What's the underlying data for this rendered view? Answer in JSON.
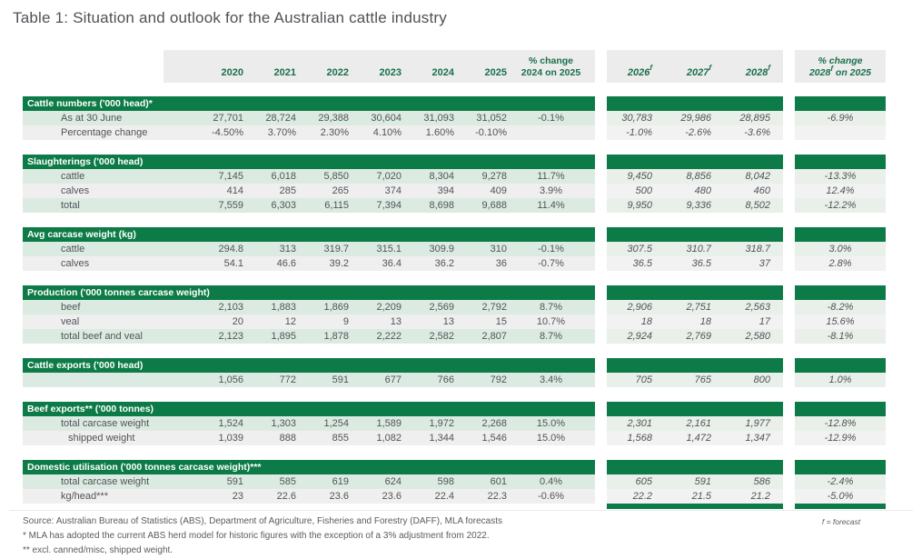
{
  "title": "Table 1: Situation and outlook for the Australian cattle industry",
  "colors": {
    "brand_green": "#0d7b47",
    "row_green": "#dcebe2",
    "row_gray": "#efefef",
    "header_gray": "#ececec",
    "heading_text_green": "#1a6f4c"
  },
  "header": {
    "years": [
      "2020",
      "2021",
      "2022",
      "2023",
      "2024",
      "2025"
    ],
    "pct_change_line1": "% change",
    "pct_change_line2": "2024 on 2025",
    "forecast_years": [
      "2026",
      "2027",
      "2028"
    ],
    "forecast_suffix": "f",
    "forecast_pct_line1": "% change",
    "forecast_pct_line2_pre": "2028",
    "forecast_pct_line2_post": " on 2025"
  },
  "sections": [
    {
      "id": "cattle-numbers",
      "title": "Cattle numbers ('000 head)*",
      "rows": [
        {
          "label": "As at 30 June",
          "indent": 1,
          "values_2020_2025": [
            "27,701",
            "28,724",
            "29,388",
            "30,604",
            "31,093",
            "31,052"
          ],
          "pct_2024_on_2025": "-0.1%",
          "forecast_2026_2028": [
            "30,783",
            "29,986",
            "28,895"
          ],
          "pct_2028_on_2025": "-6.9%"
        },
        {
          "label": "Percentage change",
          "indent": 1,
          "values_2020_2025": [
            "-4.50%",
            "3.70%",
            "2.30%",
            "4.10%",
            "1.60%",
            "-0.10%"
          ],
          "pct_2024_on_2025": "",
          "forecast_2026_2028": [
            "-1.0%",
            "-2.6%",
            "-3.6%"
          ],
          "pct_2028_on_2025": ""
        }
      ]
    },
    {
      "id": "slaughterings",
      "title": "Slaughterings ('000 head)",
      "rows": [
        {
          "label": "cattle",
          "indent": 1,
          "values_2020_2025": [
            "7,145",
            "6,018",
            "5,850",
            "7,020",
            "8,304",
            "9,278"
          ],
          "pct_2024_on_2025": "11.7%",
          "forecast_2026_2028": [
            "9,450",
            "8,856",
            "8,042"
          ],
          "pct_2028_on_2025": "-13.3%"
        },
        {
          "label": "calves",
          "indent": 1,
          "values_2020_2025": [
            "414",
            "285",
            "265",
            "374",
            "394",
            "409"
          ],
          "pct_2024_on_2025": "3.9%",
          "forecast_2026_2028": [
            "500",
            "480",
            "460"
          ],
          "pct_2028_on_2025": "12.4%"
        },
        {
          "label": "total",
          "indent": 1,
          "values_2020_2025": [
            "7,559",
            "6,303",
            "6,115",
            "7,394",
            "8,698",
            "9,688"
          ],
          "pct_2024_on_2025": "11.4%",
          "forecast_2026_2028": [
            "9,950",
            "9,336",
            "8,502"
          ],
          "pct_2028_on_2025": "-12.2%"
        }
      ]
    },
    {
      "id": "avg-carcase-weight",
      "title": "Avg carcase weight (kg)",
      "rows": [
        {
          "label": "cattle",
          "indent": 1,
          "values_2020_2025": [
            "294.8",
            "313",
            "319.7",
            "315.1",
            "309.9",
            "310"
          ],
          "pct_2024_on_2025": "-0.1%",
          "forecast_2026_2028": [
            "307.5",
            "310.7",
            "318.7"
          ],
          "pct_2028_on_2025": "3.0%"
        },
        {
          "label": "calves",
          "indent": 1,
          "values_2020_2025": [
            "54.1",
            "46.6",
            "39.2",
            "36.4",
            "36.2",
            "36"
          ],
          "pct_2024_on_2025": "-0.7%",
          "forecast_2026_2028": [
            "36.5",
            "36.5",
            "37"
          ],
          "pct_2028_on_2025": "2.8%"
        }
      ]
    },
    {
      "id": "production",
      "title": "Production ('000 tonnes carcase weight)",
      "rows": [
        {
          "label": "beef",
          "indent": 1,
          "values_2020_2025": [
            "2,103",
            "1,883",
            "1,869",
            "2,209",
            "2,569",
            "2,792"
          ],
          "pct_2024_on_2025": "8.7%",
          "forecast_2026_2028": [
            "2,906",
            "2,751",
            "2,563"
          ],
          "pct_2028_on_2025": "-8.2%"
        },
        {
          "label": "veal",
          "indent": 1,
          "values_2020_2025": [
            "20",
            "12",
            "9",
            "13",
            "13",
            "15"
          ],
          "pct_2024_on_2025": "10.7%",
          "forecast_2026_2028": [
            "18",
            "18",
            "17"
          ],
          "pct_2028_on_2025": "15.6%"
        },
        {
          "label": "total beef and veal",
          "indent": 1,
          "values_2020_2025": [
            "2,123",
            "1,895",
            "1,878",
            "2,222",
            "2,582",
            "2,807"
          ],
          "pct_2024_on_2025": "8.7%",
          "forecast_2026_2028": [
            "2,924",
            "2,769",
            "2,580"
          ],
          "pct_2028_on_2025": "-8.1%"
        }
      ]
    },
    {
      "id": "cattle-exports",
      "title": "Cattle exports ('000 head)",
      "rows": [
        {
          "label": "",
          "indent": 1,
          "values_2020_2025": [
            "1,056",
            "772",
            "591",
            "677",
            "766",
            "792"
          ],
          "pct_2024_on_2025": "3.4%",
          "forecast_2026_2028": [
            "705",
            "765",
            "800"
          ],
          "pct_2028_on_2025": "1.0%"
        }
      ]
    },
    {
      "id": "beef-exports",
      "title": "Beef exports** ('000 tonnes)",
      "rows": [
        {
          "label": "total carcase weight",
          "indent": 1,
          "values_2020_2025": [
            "1,524",
            "1,303",
            "1,254",
            "1,589",
            "1,972",
            "2,268"
          ],
          "pct_2024_on_2025": "15.0%",
          "forecast_2026_2028": [
            "2,301",
            "2,161",
            "1,977"
          ],
          "pct_2028_on_2025": "-12.8%"
        },
        {
          "label": "shipped weight",
          "indent": 2,
          "values_2020_2025": [
            "1,039",
            "888",
            "855",
            "1,082",
            "1,344",
            "1,546"
          ],
          "pct_2024_on_2025": "15.0%",
          "forecast_2026_2028": [
            "1,568",
            "1,472",
            "1,347"
          ],
          "pct_2028_on_2025": "-12.9%"
        }
      ]
    },
    {
      "id": "domestic-utilisation",
      "title": "Domestic utilisation ('000 tonnes carcase weight)***",
      "rows": [
        {
          "label": "total carcase weight",
          "indent": 1,
          "values_2020_2025": [
            "591",
            "585",
            "619",
            "624",
            "598",
            "601"
          ],
          "pct_2024_on_2025": "0.4%",
          "forecast_2026_2028": [
            "605",
            "591",
            "586"
          ],
          "pct_2028_on_2025": "-2.4%"
        },
        {
          "label": "kg/head***",
          "indent": 1,
          "values_2020_2025": [
            "23",
            "22.6",
            "23.6",
            "23.6",
            "22.4",
            "22.3"
          ],
          "pct_2024_on_2025": "-0.6%",
          "forecast_2026_2028": [
            "22.2",
            "21.5",
            "21.2"
          ],
          "pct_2028_on_2025": "-5.0%"
        }
      ]
    }
  ],
  "footnotes": {
    "source": "Source: Australian Bureau of Statistics (ABS), Department of Agriculture, Fisheries and Forestry (DAFF), MLA forecasts",
    "note1": "* MLA has adopted the current ABS herd model for historic figures with the exception of a 3% adjustment from 2022.",
    "note2": "** excl. canned/misc, shipped weight.",
    "forecast_key": "f = forecast"
  }
}
